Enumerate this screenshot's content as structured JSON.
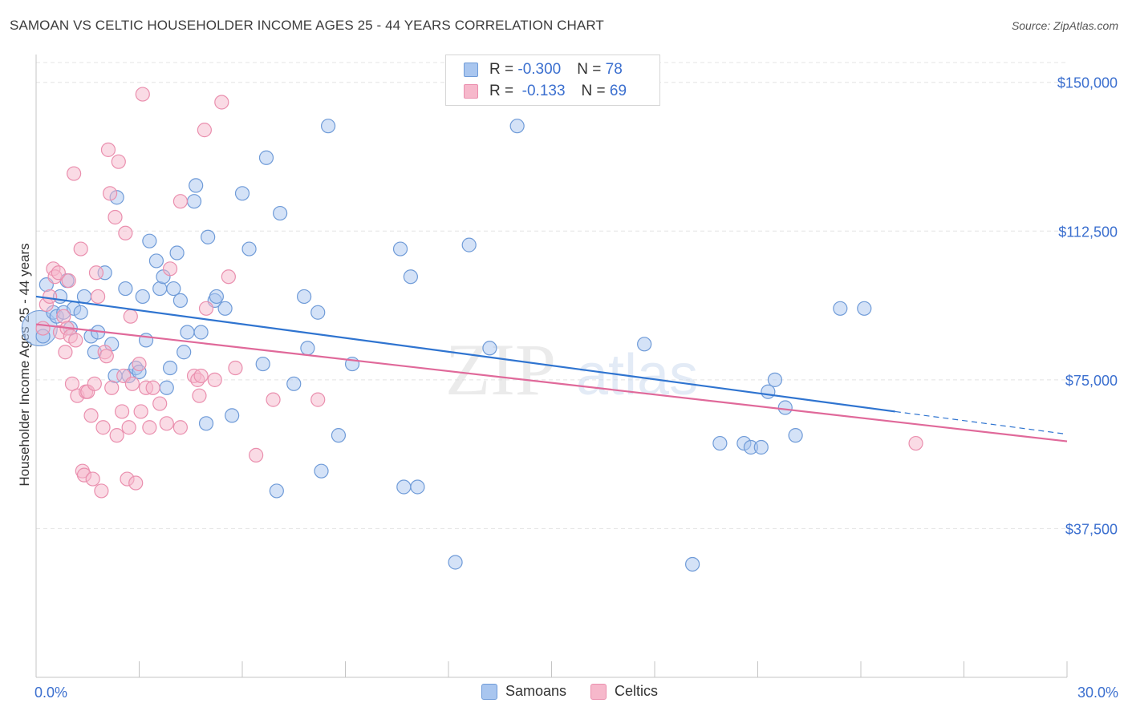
{
  "title": "SAMOAN VS CELTIC HOUSEHOLDER INCOME AGES 25 - 44 YEARS CORRELATION CHART",
  "source": "Source: ZipAtlas.com",
  "watermark": {
    "zip": "ZIP",
    "atlas": "atlas"
  },
  "legend_top": {
    "rows": [
      {
        "r_label": "R = ",
        "r_value": "-0.300",
        "n_label": "N = ",
        "n_value": "78"
      },
      {
        "r_label": "R = ",
        "r_value": " -0.133",
        "n_label": "N = ",
        "n_value": "69"
      }
    ]
  },
  "legend_bottom": {
    "samoans": "Samoans",
    "celtics": "Celtics"
  },
  "colors": {
    "samoans_fill": "#a9c6ef",
    "samoans_stroke": "#6f9bd8",
    "samoans_line": "#2f74d0",
    "celtics_fill": "#f6b8cb",
    "celtics_stroke": "#ea8fae",
    "celtics_line": "#e0699a",
    "axis_text": "#3b6fcf",
    "grid": "#e4e4e4"
  },
  "chart_data": {
    "type": "scatter",
    "title": "SAMOAN VS CELTIC HOUSEHOLDER INCOME AGES 25 - 44 YEARS CORRELATION CHART",
    "xlabel": "",
    "ylabel": "Householder Income Ages 25 - 44 years",
    "x_unit": "%",
    "xlim": [
      0,
      30
    ],
    "ylim": [
      0,
      155000
    ],
    "x_tick_labels": [
      "0.0%",
      "30.0%"
    ],
    "y_ticks": [
      37500,
      75000,
      112500,
      150000
    ],
    "y_tick_labels": [
      "$37,500",
      "$75,000",
      "$112,500",
      "$150,000"
    ],
    "grid": true,
    "legend_position": "top-center",
    "series": [
      {
        "name": "Samoans",
        "r": -0.3,
        "n": 78,
        "trend": {
          "x": [
            0,
            25
          ],
          "y": [
            96000,
            67000
          ]
        },
        "trend_dashed": {
          "x": [
            25,
            30
          ],
          "y": [
            67000,
            61300
          ]
        },
        "points": [
          [
            0.2,
            86000
          ],
          [
            0.3,
            99000
          ],
          [
            0.5,
            92000
          ],
          [
            0.6,
            91000
          ],
          [
            0.7,
            96000
          ],
          [
            0.8,
            92000
          ],
          [
            0.9,
            100000
          ],
          [
            1.0,
            88000
          ],
          [
            1.1,
            93000
          ],
          [
            1.3,
            92000
          ],
          [
            1.4,
            96000
          ],
          [
            1.6,
            86000
          ],
          [
            1.7,
            82000
          ],
          [
            1.8,
            87000
          ],
          [
            2.0,
            102000
          ],
          [
            2.2,
            84000
          ],
          [
            2.3,
            76000
          ],
          [
            2.35,
            121000
          ],
          [
            2.6,
            98000
          ],
          [
            2.7,
            76000
          ],
          [
            2.9,
            78000
          ],
          [
            3.0,
            77000
          ],
          [
            3.1,
            96000
          ],
          [
            3.2,
            85000
          ],
          [
            3.3,
            110000
          ],
          [
            3.5,
            105000
          ],
          [
            3.6,
            98000
          ],
          [
            3.7,
            101000
          ],
          [
            3.8,
            73000
          ],
          [
            3.9,
            78000
          ],
          [
            4.0,
            98000
          ],
          [
            4.1,
            107000
          ],
          [
            4.2,
            95000
          ],
          [
            4.3,
            82000
          ],
          [
            4.4,
            87000
          ],
          [
            4.6,
            120000
          ],
          [
            4.65,
            124000
          ],
          [
            4.8,
            87000
          ],
          [
            4.95,
            64000
          ],
          [
            5.0,
            111000
          ],
          [
            5.2,
            95000
          ],
          [
            5.25,
            96000
          ],
          [
            5.5,
            93000
          ],
          [
            5.7,
            66000
          ],
          [
            6.0,
            122000
          ],
          [
            6.2,
            108000
          ],
          [
            6.6,
            79000
          ],
          [
            6.7,
            131000
          ],
          [
            7.0,
            47000
          ],
          [
            7.1,
            117000
          ],
          [
            7.5,
            74000
          ],
          [
            7.8,
            96000
          ],
          [
            7.9,
            83000
          ],
          [
            8.2,
            92000
          ],
          [
            8.3,
            52000
          ],
          [
            8.5,
            139000
          ],
          [
            8.8,
            61000
          ],
          [
            9.2,
            79000
          ],
          [
            10.6,
            108000
          ],
          [
            10.7,
            48000
          ],
          [
            10.9,
            101000
          ],
          [
            11.1,
            48000
          ],
          [
            12.2,
            29000
          ],
          [
            12.6,
            109000
          ],
          [
            13.2,
            83000
          ],
          [
            14.0,
            139000
          ],
          [
            17.7,
            84000
          ],
          [
            19.1,
            28500
          ],
          [
            19.9,
            59000
          ],
          [
            20.6,
            59000
          ],
          [
            20.8,
            58000
          ],
          [
            21.1,
            58000
          ],
          [
            21.3,
            72000
          ],
          [
            21.5,
            75000
          ],
          [
            21.8,
            68000
          ],
          [
            22.1,
            61000
          ],
          [
            23.4,
            93000
          ],
          [
            24.1,
            93000
          ]
        ]
      },
      {
        "name": "Celtics",
        "r": -0.133,
        "n": 69,
        "trend": {
          "x": [
            0,
            30
          ],
          "y": [
            89000,
            59500
          ]
        },
        "points": [
          [
            0.2,
            88000
          ],
          [
            0.3,
            94000
          ],
          [
            0.4,
            96000
          ],
          [
            0.5,
            103000
          ],
          [
            0.55,
            101000
          ],
          [
            0.65,
            102000
          ],
          [
            0.7,
            87000
          ],
          [
            0.8,
            91000
          ],
          [
            0.85,
            82000
          ],
          [
            0.9,
            88000
          ],
          [
            0.95,
            100000
          ],
          [
            1.0,
            86000
          ],
          [
            1.05,
            74000
          ],
          [
            1.1,
            127000
          ],
          [
            1.15,
            85000
          ],
          [
            1.2,
            71000
          ],
          [
            1.3,
            108000
          ],
          [
            1.35,
            52000
          ],
          [
            1.4,
            51000
          ],
          [
            1.45,
            72000
          ],
          [
            1.5,
            72000
          ],
          [
            1.6,
            66000
          ],
          [
            1.65,
            50000
          ],
          [
            1.7,
            74000
          ],
          [
            1.75,
            102000
          ],
          [
            1.8,
            96000
          ],
          [
            1.9,
            47000
          ],
          [
            1.95,
            63000
          ],
          [
            2.0,
            82000
          ],
          [
            2.05,
            81000
          ],
          [
            2.1,
            133000
          ],
          [
            2.15,
            122000
          ],
          [
            2.2,
            73000
          ],
          [
            2.3,
            116000
          ],
          [
            2.35,
            61000
          ],
          [
            2.4,
            130000
          ],
          [
            2.5,
            67000
          ],
          [
            2.55,
            76000
          ],
          [
            2.6,
            112000
          ],
          [
            2.65,
            50000
          ],
          [
            2.7,
            63000
          ],
          [
            2.75,
            91000
          ],
          [
            2.8,
            74000
          ],
          [
            2.9,
            49000
          ],
          [
            3.0,
            79000
          ],
          [
            3.05,
            67000
          ],
          [
            3.1,
            147000
          ],
          [
            3.2,
            73000
          ],
          [
            3.3,
            63000
          ],
          [
            3.4,
            73000
          ],
          [
            3.6,
            69000
          ],
          [
            3.8,
            64000
          ],
          [
            3.9,
            103000
          ],
          [
            4.2,
            63000
          ],
          [
            4.2,
            120000
          ],
          [
            4.6,
            76000
          ],
          [
            4.7,
            75000
          ],
          [
            4.75,
            71000
          ],
          [
            4.8,
            76000
          ],
          [
            4.9,
            138000
          ],
          [
            4.95,
            93000
          ],
          [
            5.2,
            75000
          ],
          [
            5.4,
            145000
          ],
          [
            5.6,
            101000
          ],
          [
            5.8,
            78000
          ],
          [
            6.4,
            56000
          ],
          [
            6.9,
            70000
          ],
          [
            8.2,
            70000
          ],
          [
            25.6,
            59000
          ]
        ]
      }
    ]
  }
}
